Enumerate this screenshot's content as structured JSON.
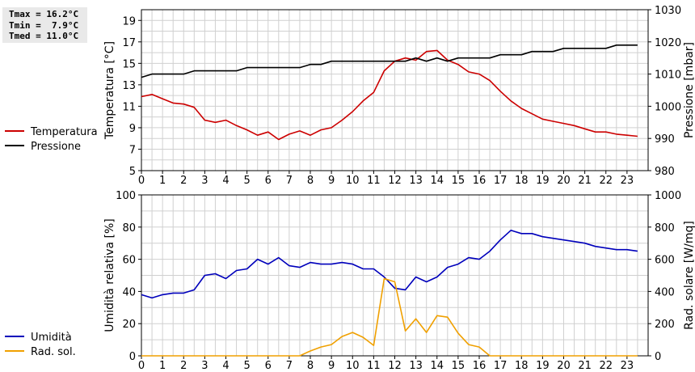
{
  "stats": {
    "tmax": "Tmax = 16.2°C",
    "tmin": "Tmin =  7.9°C",
    "tmed": "Tmed = 11.0°C"
  },
  "chart_data": [
    {
      "type": "line",
      "x": [
        0,
        0.5,
        1,
        1.5,
        2,
        2.5,
        3,
        3.5,
        4,
        4.5,
        5,
        5.5,
        6,
        6.5,
        7,
        7.5,
        8,
        8.5,
        9,
        9.5,
        10,
        10.5,
        11,
        11.5,
        12,
        12.5,
        13,
        13.5,
        14,
        14.5,
        15,
        15.5,
        16,
        16.5,
        17,
        17.5,
        18,
        18.5,
        19,
        19.5,
        20,
        20.5,
        21,
        21.5,
        22,
        22.5,
        23,
        23.5
      ],
      "xlim": [
        0,
        24
      ],
      "xticks": [
        "0",
        "1",
        "2",
        "3",
        "4",
        "5",
        "6",
        "7",
        "8",
        "9",
        "10",
        "11",
        "12",
        "13",
        "14",
        "15",
        "16",
        "17",
        "18",
        "19",
        "20",
        "21",
        "22",
        "23"
      ],
      "ylabel": "Temperatura [°C]",
      "ylim": [
        5,
        20
      ],
      "yticks": [
        "5",
        "7",
        "9",
        "11",
        "13",
        "15",
        "17",
        "19"
      ],
      "y2label": "Pressione [mbar]",
      "y2lim": [
        980,
        1030
      ],
      "y2ticks": [
        "980",
        "990",
        "1000",
        "1010",
        "1020",
        "1030"
      ],
      "grid": true,
      "legend_position": "left",
      "series": [
        {
          "name": "Temperatura",
          "axis": "left",
          "color": "#cc0000",
          "values": [
            11.9,
            12.1,
            11.7,
            11.3,
            11.2,
            10.9,
            9.7,
            9.5,
            9.7,
            9.2,
            8.8,
            8.3,
            8.6,
            7.9,
            8.4,
            8.7,
            8.3,
            8.8,
            9.0,
            9.7,
            10.5,
            11.5,
            12.3,
            14.3,
            15.2,
            15.5,
            15.3,
            16.1,
            16.2,
            15.3,
            14.9,
            14.2,
            14.0,
            13.4,
            12.4,
            11.5,
            10.8,
            10.3,
            9.8,
            9.6,
            9.4,
            9.2,
            8.9,
            8.6,
            8.6,
            8.4,
            8.3,
            8.2
          ]
        },
        {
          "name": "Pressione",
          "axis": "right",
          "color": "#000000",
          "values": [
            1009,
            1010,
            1010,
            1010,
            1010,
            1011,
            1011,
            1011,
            1011,
            1011,
            1012,
            1012,
            1012,
            1012,
            1012,
            1012,
            1013,
            1013,
            1014,
            1014,
            1014,
            1014,
            1014,
            1014,
            1014,
            1014,
            1015,
            1014,
            1015,
            1014,
            1015,
            1015,
            1015,
            1015,
            1016,
            1016,
            1016,
            1017,
            1017,
            1017,
            1018,
            1018,
            1018,
            1018,
            1018,
            1019,
            1019,
            1019
          ]
        }
      ]
    },
    {
      "type": "line",
      "x": [
        0,
        0.5,
        1,
        1.5,
        2,
        2.5,
        3,
        3.5,
        4,
        4.5,
        5,
        5.5,
        6,
        6.5,
        7,
        7.5,
        8,
        8.5,
        9,
        9.5,
        10,
        10.5,
        11,
        11.5,
        12,
        12.5,
        13,
        13.5,
        14,
        14.5,
        15,
        15.5,
        16,
        16.5,
        17,
        17.5,
        18,
        18.5,
        19,
        19.5,
        20,
        20.5,
        21,
        21.5,
        22,
        22.5,
        23,
        23.5
      ],
      "xlim": [
        0,
        24
      ],
      "xticks": [
        "0",
        "1",
        "2",
        "3",
        "4",
        "5",
        "6",
        "7",
        "8",
        "9",
        "10",
        "11",
        "12",
        "13",
        "14",
        "15",
        "16",
        "17",
        "18",
        "19",
        "20",
        "21",
        "22",
        "23"
      ],
      "ylabel": "Umidità relativa [%]",
      "ylim": [
        0,
        100
      ],
      "yticks": [
        "0",
        "20",
        "40",
        "60",
        "80",
        "100"
      ],
      "y2label": "Rad. solare [W/mq]",
      "y2lim": [
        0,
        1000
      ],
      "y2ticks": [
        "0",
        "200",
        "400",
        "600",
        "800",
        "1000"
      ],
      "grid": true,
      "legend_position": "left",
      "series": [
        {
          "name": "Umidità",
          "axis": "left",
          "color": "#0000bb",
          "values": [
            38,
            36,
            38,
            39,
            39,
            41,
            50,
            51,
            48,
            53,
            54,
            60,
            57,
            61,
            56,
            55,
            58,
            57,
            57,
            58,
            57,
            54,
            54,
            49,
            42,
            41,
            49,
            46,
            49,
            55,
            57,
            61,
            60,
            65,
            72,
            78,
            76,
            76,
            74,
            73,
            72,
            71,
            70,
            68,
            67,
            66,
            66,
            65
          ]
        },
        {
          "name": "Rad. sol.",
          "axis": "right",
          "color": "#f0a000",
          "values": [
            0,
            0,
            0,
            0,
            0,
            0,
            0,
            0,
            0,
            0,
            0,
            0,
            0,
            0,
            0,
            0,
            30,
            55,
            70,
            120,
            145,
            115,
            65,
            480,
            460,
            155,
            230,
            145,
            250,
            240,
            140,
            70,
            55,
            0,
            0,
            0,
            0,
            0,
            0,
            0,
            0,
            0,
            0,
            0,
            0,
            0,
            0,
            0
          ]
        }
      ]
    }
  ]
}
